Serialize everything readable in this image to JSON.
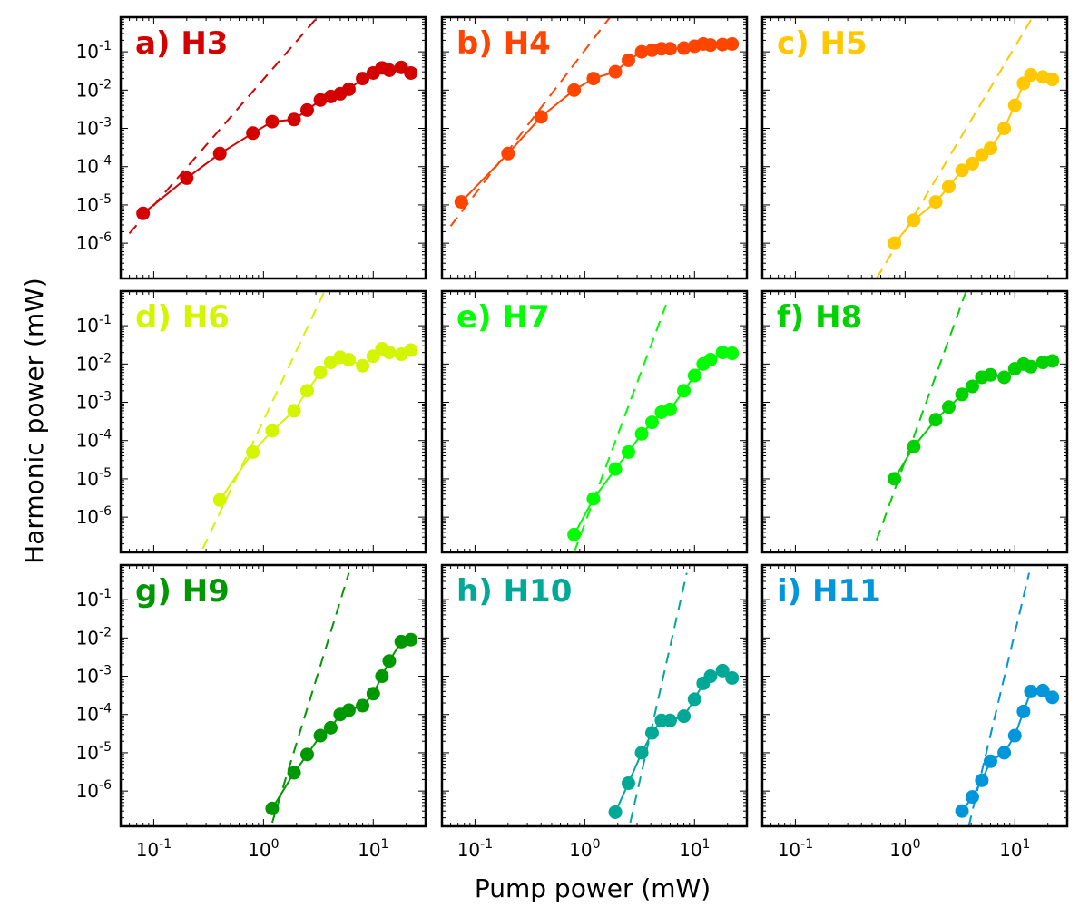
{
  "figure": {
    "xlabel": "Pump power (mW)",
    "ylabel": "Harmonic power (mW)"
  },
  "chart_data": {
    "type": "line",
    "title": "",
    "xlabel": "Pump power (mW)",
    "ylabel": "Harmonic power (mW)",
    "xscale": "log",
    "yscale": "log",
    "xlim": [
      0.05,
      30
    ],
    "ylim": [
      1.2e-07,
      0.8
    ],
    "x_ticks": [
      {
        "value": 0.1,
        "base": "10",
        "exp": "-1"
      },
      {
        "value": 1,
        "base": "10",
        "exp": "0"
      },
      {
        "value": 10,
        "base": "10",
        "exp": "1"
      }
    ],
    "y_ticks": [
      {
        "value": 1e-06,
        "base": "10",
        "exp": "-6"
      },
      {
        "value": 1e-05,
        "base": "10",
        "exp": "-5"
      },
      {
        "value": 0.0001,
        "base": "10",
        "exp": "-4"
      },
      {
        "value": 0.001,
        "base": "10",
        "exp": "-3"
      },
      {
        "value": 0.01,
        "base": "10",
        "exp": "-2"
      },
      {
        "value": 0.1,
        "base": "10",
        "exp": "-1"
      }
    ],
    "panels": [
      {
        "label": "a) H3",
        "color": "#d40000",
        "fit_line": [
          [
            0.06,
            1.8e-06
          ],
          [
            3.1,
            0.8
          ]
        ],
        "series": [
          [
            0.08,
            6e-06
          ],
          [
            0.2,
            5e-05
          ],
          [
            0.4,
            0.00022
          ],
          [
            0.8,
            0.00075
          ],
          [
            1.2,
            0.0015
          ],
          [
            1.9,
            0.0017
          ],
          [
            2.5,
            0.003
          ],
          [
            3.3,
            0.0055
          ],
          [
            4.1,
            0.0068
          ],
          [
            5.0,
            0.008
          ],
          [
            6.0,
            0.0105
          ],
          [
            8.0,
            0.02
          ],
          [
            10.0,
            0.028
          ],
          [
            12.0,
            0.038
          ],
          [
            14.0,
            0.033
          ],
          [
            18.0,
            0.039
          ],
          [
            22.0,
            0.028
          ]
        ]
      },
      {
        "label": "b) H4",
        "color": "#ff4500",
        "fit_line": [
          [
            0.06,
            2.8e-06
          ],
          [
            1.7,
            0.8
          ]
        ],
        "series": [
          [
            0.075,
            1.2e-05
          ],
          [
            0.2,
            0.00022
          ],
          [
            0.4,
            0.002
          ],
          [
            0.8,
            0.01
          ],
          [
            1.2,
            0.02
          ],
          [
            1.9,
            0.03
          ],
          [
            2.5,
            0.06
          ],
          [
            3.3,
            0.1
          ],
          [
            4.1,
            0.11
          ],
          [
            5.0,
            0.12
          ],
          [
            6.0,
            0.12
          ],
          [
            8.0,
            0.125
          ],
          [
            10.0,
            0.14
          ],
          [
            12.0,
            0.16
          ],
          [
            14.0,
            0.15
          ],
          [
            18.0,
            0.155
          ],
          [
            22.0,
            0.16
          ]
        ]
      },
      {
        "label": "c) H5",
        "color": "#ffc800",
        "fit_line": [
          [
            0.55,
            1.2e-07
          ],
          [
            14.5,
            0.8
          ]
        ],
        "series": [
          [
            0.8,
            1e-06
          ],
          [
            1.2,
            4e-06
          ],
          [
            1.9,
            1.2e-05
          ],
          [
            2.5,
            3e-05
          ],
          [
            3.3,
            8e-05
          ],
          [
            4.1,
            0.00012
          ],
          [
            5.0,
            0.0002
          ],
          [
            6.0,
            0.0003
          ],
          [
            8.0,
            0.001
          ],
          [
            10.0,
            0.004
          ],
          [
            12.0,
            0.015
          ],
          [
            14.0,
            0.025
          ],
          [
            18.0,
            0.022
          ],
          [
            22.0,
            0.019
          ]
        ]
      },
      {
        "label": "d) H6",
        "color": "#d4f500",
        "fit_line": [
          [
            0.28,
            1.5e-07
          ],
          [
            3.6,
            0.8
          ]
        ],
        "series": [
          [
            0.4,
            2.8e-06
          ],
          [
            0.8,
            5e-05
          ],
          [
            1.2,
            0.00018
          ],
          [
            1.9,
            0.0006
          ],
          [
            2.5,
            0.002
          ],
          [
            3.3,
            0.006
          ],
          [
            4.1,
            0.011
          ],
          [
            5.0,
            0.015
          ],
          [
            6.0,
            0.013
          ],
          [
            8.0,
            0.009
          ],
          [
            10.0,
            0.016
          ],
          [
            12.0,
            0.025
          ],
          [
            14.0,
            0.02
          ],
          [
            18.0,
            0.018
          ],
          [
            22.0,
            0.023
          ]
        ]
      },
      {
        "label": "e) H7",
        "color": "#00ff00",
        "fit_line": [
          [
            0.8,
            1.2e-07
          ],
          [
            5.5,
            0.35
          ]
        ],
        "series": [
          [
            0.8,
            3.5e-07
          ],
          [
            1.2,
            3e-06
          ],
          [
            1.9,
            1.8e-05
          ],
          [
            2.5,
            5e-05
          ],
          [
            3.3,
            0.00015
          ],
          [
            4.1,
            0.0003
          ],
          [
            5.0,
            0.00055
          ],
          [
            6.0,
            0.00065
          ],
          [
            8.0,
            0.002
          ],
          [
            10.0,
            0.005
          ],
          [
            12.0,
            0.01
          ],
          [
            14.0,
            0.013
          ],
          [
            18.0,
            0.02
          ],
          [
            22.0,
            0.019
          ]
        ]
      },
      {
        "label": "f) H8",
        "color": "#00d200",
        "fit_line": [
          [
            0.55,
            2.5e-07
          ],
          [
            3.6,
            0.8
          ]
        ],
        "series": [
          [
            0.8,
            1e-05
          ],
          [
            1.2,
            7e-05
          ],
          [
            1.9,
            0.00035
          ],
          [
            2.5,
            0.00075
          ],
          [
            3.3,
            0.0016
          ],
          [
            4.1,
            0.0026
          ],
          [
            5.0,
            0.0045
          ],
          [
            6.0,
            0.0052
          ],
          [
            8.0,
            0.0045
          ],
          [
            10.0,
            0.0075
          ],
          [
            12.0,
            0.01
          ],
          [
            14.0,
            0.0085
          ],
          [
            18.0,
            0.011
          ],
          [
            22.0,
            0.012
          ]
        ]
      },
      {
        "label": "g) H9",
        "color": "#009800",
        "fit_line": [
          [
            1.2,
            1.5e-07
          ],
          [
            6.0,
            0.5
          ]
        ],
        "series": [
          [
            1.2,
            3.5e-07
          ],
          [
            1.9,
            3e-06
          ],
          [
            2.5,
            9e-06
          ],
          [
            3.3,
            2.8e-05
          ],
          [
            4.1,
            4.5e-05
          ],
          [
            5.0,
            0.0001
          ],
          [
            6.0,
            0.00013
          ],
          [
            8.0,
            0.00017
          ],
          [
            10.0,
            0.00035
          ],
          [
            12.0,
            0.001
          ],
          [
            14.0,
            0.0025
          ],
          [
            18.0,
            0.008
          ],
          [
            22.0,
            0.009
          ]
        ]
      },
      {
        "label": "h) H10",
        "color": "#00a896",
        "fit_line": [
          [
            2.6,
            1.5e-07
          ],
          [
            8.5,
            0.5
          ]
        ],
        "series": [
          [
            1.9,
            2.8e-07
          ],
          [
            2.5,
            1.6e-06
          ],
          [
            3.3,
            1e-05
          ],
          [
            4.1,
            3.3e-05
          ],
          [
            5.0,
            7e-05
          ],
          [
            6.0,
            7e-05
          ],
          [
            8.0,
            9e-05
          ],
          [
            10.0,
            0.00025
          ],
          [
            12.0,
            0.00065
          ],
          [
            14.0,
            0.001
          ],
          [
            18.0,
            0.0014
          ],
          [
            22.0,
            0.0009
          ]
        ]
      },
      {
        "label": "i) H11",
        "color": "#0096dc",
        "fit_line": [
          [
            3.8,
            1.2e-07
          ],
          [
            13.5,
            0.5
          ]
        ],
        "series": [
          [
            3.3,
            3e-07
          ],
          [
            4.1,
            7e-07
          ],
          [
            5.0,
            1.9e-06
          ],
          [
            6.0,
            6e-06
          ],
          [
            8.0,
            1e-05
          ],
          [
            10.0,
            2.8e-05
          ],
          [
            12.0,
            0.00012
          ],
          [
            14.0,
            0.0004
          ],
          [
            18.0,
            0.00042
          ],
          [
            22.0,
            0.00028
          ]
        ]
      }
    ]
  }
}
